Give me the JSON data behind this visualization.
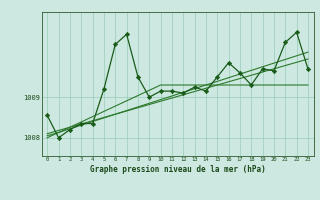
{
  "x": [
    0,
    1,
    2,
    3,
    4,
    5,
    6,
    7,
    8,
    9,
    10,
    11,
    12,
    13,
    14,
    15,
    16,
    17,
    18,
    19,
    20,
    21,
    22,
    23
  ],
  "y_main": [
    1008.55,
    1008.0,
    1008.2,
    1008.35,
    1008.35,
    1009.2,
    1010.3,
    1010.55,
    1009.5,
    1009.0,
    1009.15,
    1009.15,
    1009.1,
    1009.25,
    1009.15,
    1009.5,
    1009.85,
    1009.6,
    1009.3,
    1009.7,
    1009.65,
    1010.35,
    1010.6,
    1009.7
  ],
  "y_trend1": [
    1008.0,
    1008.13,
    1008.26,
    1008.39,
    1008.52,
    1008.65,
    1008.78,
    1008.91,
    1009.04,
    1009.17,
    1009.3,
    1009.3,
    1009.3,
    1009.3,
    1009.3,
    1009.3,
    1009.3,
    1009.3,
    1009.3,
    1009.3,
    1009.3,
    1009.3,
    1009.3,
    1009.3
  ],
  "y_trend2": [
    1008.05,
    1008.13,
    1008.22,
    1008.31,
    1008.4,
    1008.49,
    1008.58,
    1008.67,
    1008.76,
    1008.85,
    1008.94,
    1009.03,
    1009.12,
    1009.21,
    1009.3,
    1009.39,
    1009.48,
    1009.57,
    1009.66,
    1009.75,
    1009.84,
    1009.93,
    1010.02,
    1010.11
  ],
  "y_trend3": [
    1008.1,
    1008.18,
    1008.26,
    1008.34,
    1008.42,
    1008.5,
    1008.58,
    1008.66,
    1008.74,
    1008.82,
    1008.9,
    1008.98,
    1009.06,
    1009.14,
    1009.22,
    1009.3,
    1009.38,
    1009.46,
    1009.54,
    1009.62,
    1009.7,
    1009.78,
    1009.86,
    1009.94
  ],
  "line_color": "#1a5c1a",
  "trend_color": "#2d7a2d",
  "bg_color": "#cce8e0",
  "grid_color": "#99ccbb",
  "axis_color": "#2d5a2d",
  "text_color": "#1a4a1a",
  "xlabel": "Graphe pression niveau de la mer (hPa)",
  "ylim_min": 1007.55,
  "ylim_max": 1011.1,
  "yticks": [
    1008,
    1009
  ],
  "xticks": [
    0,
    1,
    2,
    3,
    4,
    5,
    6,
    7,
    8,
    9,
    10,
    11,
    12,
    13,
    14,
    15,
    16,
    17,
    18,
    19,
    20,
    21,
    22,
    23
  ]
}
